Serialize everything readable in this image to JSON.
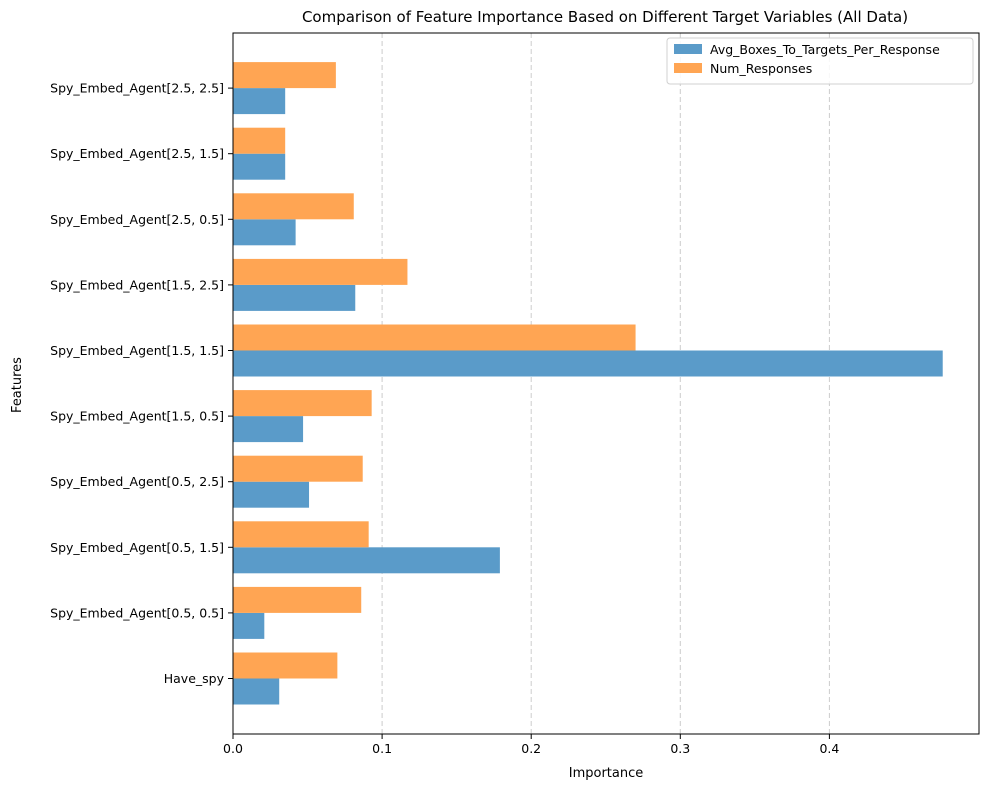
{
  "chart_data": {
    "type": "bar",
    "orientation": "horizontal",
    "title": "Comparison of Feature Importance Based on Different Target Variables (All Data)",
    "xlabel": "Importance",
    "ylabel": "Features",
    "xlim": [
      0,
      0.5
    ],
    "xticks": [
      0.0,
      0.1,
      0.2,
      0.3,
      0.4
    ],
    "xtick_labels": [
      "0.0",
      "0.1",
      "0.2",
      "0.3",
      "0.4"
    ],
    "grid": "vertical dashed",
    "legend_position": "top-right",
    "categories": [
      "Have_spy",
      "Spy_Embed_Agent[0.5, 0.5]",
      "Spy_Embed_Agent[0.5, 1.5]",
      "Spy_Embed_Agent[0.5, 2.5]",
      "Spy_Embed_Agent[1.5, 0.5]",
      "Spy_Embed_Agent[1.5, 1.5]",
      "Spy_Embed_Agent[1.5, 2.5]",
      "Spy_Embed_Agent[2.5, 0.5]",
      "Spy_Embed_Agent[2.5, 1.5]",
      "Spy_Embed_Agent[2.5, 2.5]"
    ],
    "series": [
      {
        "name": "Avg_Boxes_To_Targets_Per_Response",
        "color": "#5a9bc9",
        "values": [
          0.031,
          0.021,
          0.179,
          0.051,
          0.047,
          0.476,
          0.082,
          0.042,
          0.035,
          0.035
        ]
      },
      {
        "name": "Num_Responses",
        "color": "#ffa553",
        "values": [
          0.07,
          0.086,
          0.091,
          0.087,
          0.093,
          0.27,
          0.117,
          0.081,
          0.035,
          0.069
        ]
      }
    ]
  }
}
